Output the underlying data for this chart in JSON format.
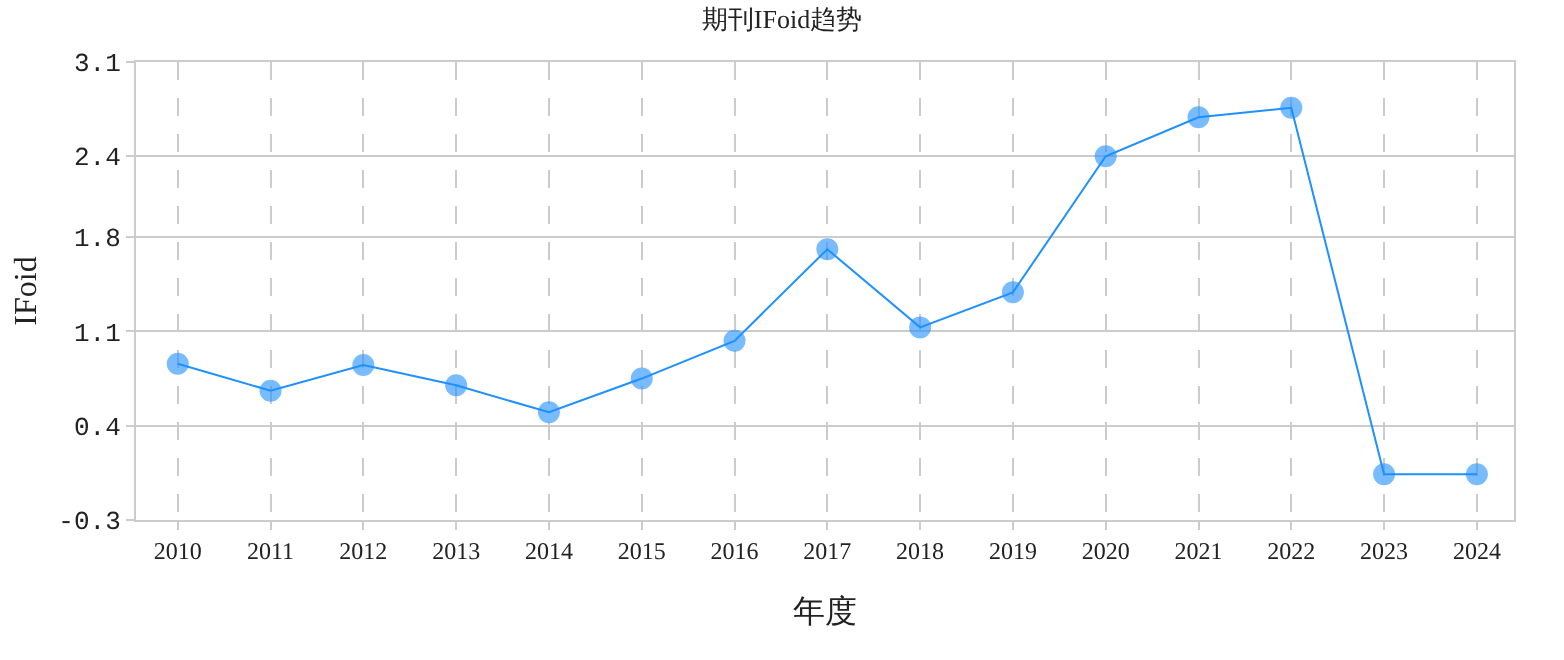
{
  "chart_data": {
    "type": "line",
    "title": "期刊IFoid趋势",
    "xlabel": "年度",
    "ylabel": "IFoid",
    "categories": [
      "2010",
      "2011",
      "2012",
      "2013",
      "2014",
      "2015",
      "2016",
      "2017",
      "2018",
      "2019",
      "2020",
      "2021",
      "2022",
      "2023",
      "2024"
    ],
    "series": [
      {
        "color": "#1e90ff",
        "values": [
          0.86,
          0.66,
          0.85,
          0.7,
          0.5,
          0.75,
          1.03,
          1.71,
          1.13,
          1.39,
          2.4,
          2.69,
          2.76,
          0.04,
          0.04
        ]
      }
    ],
    "ylim": [
      -0.3,
      3.1
    ],
    "yticks": [
      -0.3,
      0.4,
      1.1,
      1.8,
      2.4,
      3.1
    ],
    "grid": true,
    "marker": "circle",
    "line_style": "solid"
  }
}
